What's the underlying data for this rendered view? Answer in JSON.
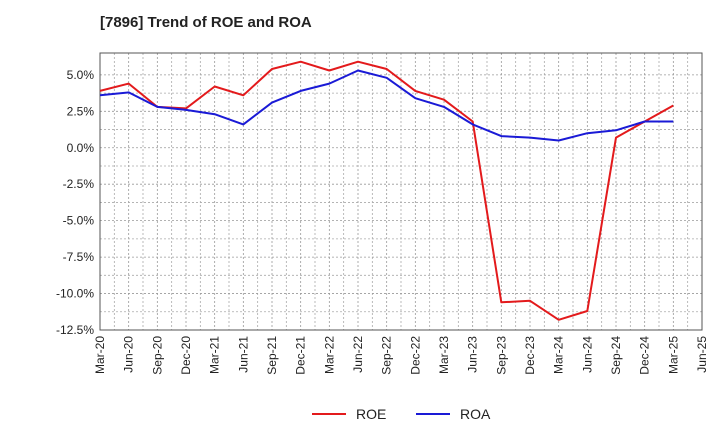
{
  "chart_data": {
    "type": "line",
    "title": "[7896]  Trend of ROE and ROA",
    "xlabel": "",
    "ylabel": "",
    "x": [
      "Mar-20",
      "Jun-20",
      "Sep-20",
      "Dec-20",
      "Mar-21",
      "Jun-21",
      "Sep-21",
      "Dec-21",
      "Mar-22",
      "Jun-22",
      "Sep-22",
      "Dec-22",
      "Mar-23",
      "Jun-23",
      "Sep-23",
      "Dec-23",
      "Mar-24",
      "Jun-24",
      "Sep-24",
      "Dec-24",
      "Mar-25",
      "Jun-25"
    ],
    "ylim": [
      -12.5,
      6.5
    ],
    "yticks": [
      5.0,
      2.5,
      0.0,
      -2.5,
      -5.0,
      -7.5,
      -10.0,
      -12.5
    ],
    "ytick_labels": [
      "5.0%",
      "2.5%",
      "0.0%",
      "-2.5%",
      "-5.0%",
      "-7.5%",
      "-10.0%",
      "-12.5%"
    ],
    "grid": true,
    "legend_position": "bottom-center",
    "series": [
      {
        "name": "ROE",
        "color": "#e31a1c",
        "values": [
          3.9,
          4.4,
          2.8,
          2.7,
          4.2,
          3.6,
          5.4,
          5.9,
          5.3,
          5.9,
          5.4,
          3.9,
          3.3,
          1.8,
          -10.6,
          -10.5,
          -11.8,
          -11.2,
          0.7,
          1.8,
          2.9,
          null
        ]
      },
      {
        "name": "ROA",
        "color": "#1a1ad6",
        "values": [
          3.6,
          3.8,
          2.8,
          2.6,
          2.3,
          1.6,
          3.1,
          3.9,
          4.4,
          5.3,
          4.8,
          3.4,
          2.8,
          1.6,
          0.8,
          0.7,
          0.5,
          1.0,
          1.2,
          1.8,
          1.8,
          null
        ]
      }
    ]
  }
}
